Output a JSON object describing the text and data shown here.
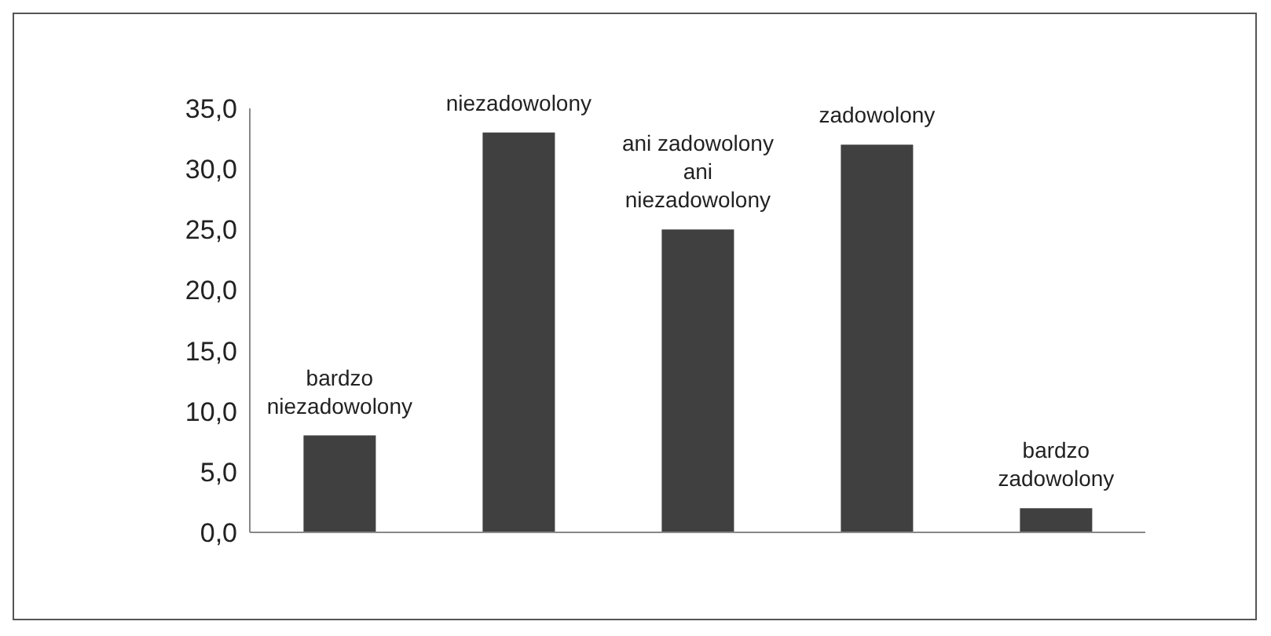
{
  "chart_data": {
    "type": "bar",
    "categories": [
      "bardzo niezadowolony",
      "niezadowolony",
      "ani zadowolony ani niezadowolony",
      "zadowolony",
      "bardzo zadowolony"
    ],
    "values": [
      8.0,
      33.0,
      25.0,
      32.0,
      2.0
    ],
    "color": "#404040",
    "ylim": [
      0,
      35
    ],
    "yticks": [
      {
        "value": 0,
        "label": "0,0"
      },
      {
        "value": 5,
        "label": "5,0"
      },
      {
        "value": 10,
        "label": "10,0"
      },
      {
        "value": 15,
        "label": "15,0"
      },
      {
        "value": 20,
        "label": "20,0"
      },
      {
        "value": 25,
        "label": "25,0"
      },
      {
        "value": 30,
        "label": "30,0"
      },
      {
        "value": 35,
        "label": "35,0"
      }
    ],
    "tick_labels": "y",
    "grid": false
  }
}
